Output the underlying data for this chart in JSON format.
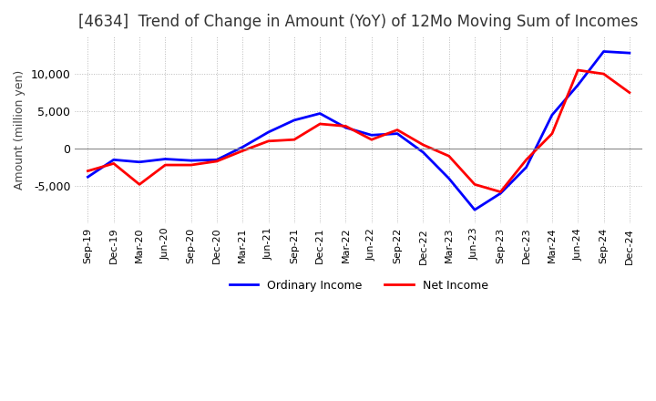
{
  "title": "[4634]  Trend of Change in Amount (YoY) of 12Mo Moving Sum of Incomes",
  "ylabel": "Amount (million yen)",
  "x_labels": [
    "Sep-19",
    "Dec-19",
    "Mar-20",
    "Jun-20",
    "Sep-20",
    "Dec-20",
    "Mar-21",
    "Jun-21",
    "Sep-21",
    "Dec-21",
    "Mar-22",
    "Jun-22",
    "Sep-22",
    "Dec-22",
    "Mar-23",
    "Jun-23",
    "Sep-23",
    "Dec-23",
    "Mar-24",
    "Jun-24",
    "Sep-24",
    "Dec-24"
  ],
  "ordinary_income": [
    -3800,
    -1500,
    -1800,
    -1400,
    -1600,
    -1500,
    200,
    2200,
    3800,
    4700,
    2800,
    1800,
    2000,
    -500,
    -4000,
    -8200,
    -6000,
    -2500,
    4500,
    8500,
    13000,
    12800
  ],
  "net_income": [
    -3000,
    -2000,
    -4800,
    -2200,
    -2200,
    -1700,
    -300,
    1000,
    1200,
    3300,
    3000,
    1200,
    2500,
    500,
    -1000,
    -4800,
    -5800,
    -1500,
    2000,
    10500,
    10000,
    7500
  ],
  "ordinary_income_color": "#0000FF",
  "net_income_color": "#FF0000",
  "ylim": [
    -10000,
    15000
  ],
  "yticks": [
    -5000,
    0,
    5000,
    10000
  ],
  "background_color": "#FFFFFF",
  "grid_color": "#BBBBBB",
  "title_fontsize": 12,
  "axis_fontsize": 9,
  "legend_labels": [
    "Ordinary Income",
    "Net Income"
  ]
}
